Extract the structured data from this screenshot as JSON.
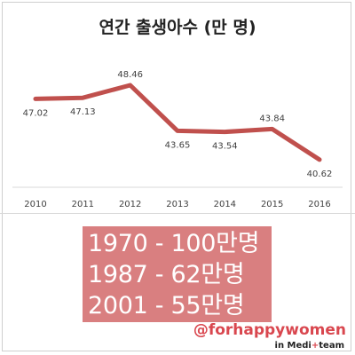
{
  "chart_data": {
    "type": "line",
    "title": "연간 출생아수 (만 명)",
    "categories": [
      "2010",
      "2011",
      "2012",
      "2013",
      "2014",
      "2015",
      "2016"
    ],
    "series": [
      {
        "values": [
          47.02,
          47.13,
          48.46,
          43.65,
          43.54,
          43.84,
          40.62
        ]
      }
    ],
    "data_labels": [
      "47.02",
      "47.13",
      "48.46",
      "43.65",
      "43.54",
      "43.84",
      "40.62"
    ],
    "label_side": [
      "below",
      "below",
      "above",
      "below",
      "below",
      "above",
      "below"
    ],
    "ylim": [
      35,
      55
    ],
    "grid": false,
    "legend": "none",
    "line_color": "#c0504d"
  },
  "facts": [
    "1970 - 100만명",
    "1987 - 62만명",
    "2001 - 55만명"
  ],
  "branding": {
    "handle": "@forhappywomen",
    "sub_prefix": "in Medi",
    "sub_plus": "+",
    "sub_suffix": "team"
  }
}
